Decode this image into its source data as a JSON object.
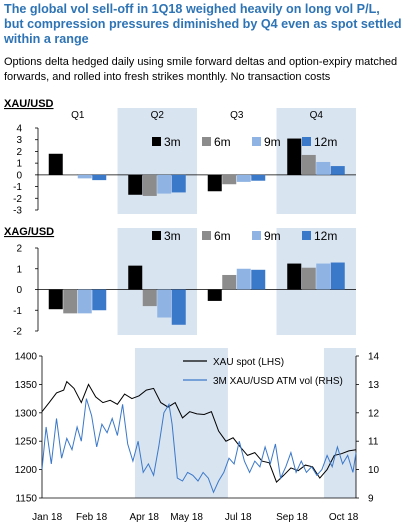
{
  "header": {
    "title": "The global vol sell-off in 1Q18 weighed heavily on long vol P/L, but compression pressures diminished by Q4 even as spot settled within a range",
    "subtitle": "Options delta hedged daily using smile forward deltas and option-expiry matched forwards, and rolled into fresh strikes monthly. No transaction costs"
  },
  "colors": {
    "title": "#2e74b5",
    "series_3m": "#000000",
    "series_6m": "#8c8c8c",
    "series_9m": "#8fb4e3",
    "series_12m": "#3a78c9",
    "quarter_shade": "#d9e4f1",
    "xau_spot_line": "#000000",
    "vol_line": "#3a78c9"
  },
  "chart_data": [
    {
      "type": "bar",
      "title": "XAU/USD",
      "categories": [
        "Q1",
        "Q2",
        "Q3",
        "Q4"
      ],
      "shaded_categories": [
        "Q2",
        "Q4"
      ],
      "series": [
        {
          "name": "3m",
          "values": [
            1.8,
            -1.7,
            -1.4,
            3.1
          ]
        },
        {
          "name": "6m",
          "values": [
            0.05,
            -1.8,
            -0.8,
            1.7
          ]
        },
        {
          "name": "9m",
          "values": [
            -0.3,
            -1.6,
            -0.6,
            1.1
          ]
        },
        {
          "name": "12m",
          "values": [
            -0.45,
            -1.5,
            -0.5,
            0.75
          ]
        }
      ],
      "ylim": [
        -3,
        4
      ],
      "yticks": [
        "4",
        "3",
        "2",
        "1",
        "0",
        "-1",
        "-2",
        "-3"
      ],
      "legend": "top-right"
    },
    {
      "type": "bar",
      "title": "XAG/USD",
      "categories": [
        "Q1",
        "Q2",
        "Q3",
        "Q4"
      ],
      "shaded_categories": [
        "Q2",
        "Q4"
      ],
      "series": [
        {
          "name": "3m",
          "values": [
            -0.95,
            1.15,
            -0.55,
            1.25
          ]
        },
        {
          "name": "6m",
          "values": [
            -1.15,
            -0.8,
            0.7,
            1.05
          ]
        },
        {
          "name": "9m",
          "values": [
            -1.15,
            -1.35,
            1.0,
            1.25
          ]
        },
        {
          "name": "12m",
          "values": [
            -1.0,
            -1.7,
            0.95,
            1.3
          ]
        }
      ],
      "ylim": [
        -2,
        2
      ],
      "yticks": [
        "2",
        "1",
        "0",
        "-1",
        "-2"
      ],
      "legend": "top-right"
    },
    {
      "type": "line",
      "x_range": [
        "2018-01-01",
        "2018-11-01"
      ],
      "xticks": [
        "Jan 18",
        "Feb 18",
        "Apr 18",
        "May 18",
        "Jul 18",
        "Sep 18",
        "Oct 18"
      ],
      "ylim_left": [
        1150,
        1400
      ],
      "yticks_left": [
        "1400",
        "1350",
        "1300",
        "1250",
        "1200",
        "1150"
      ],
      "ylim_right": [
        9,
        14
      ],
      "yticks_right": [
        "14",
        "13",
        "12",
        "11",
        "10",
        "9"
      ],
      "shaded_ranges": [
        [
          "2018-04-01",
          "2018-06-30"
        ],
        [
          "2018-10-01",
          "2018-12-31"
        ]
      ],
      "legend": "top-right",
      "series": [
        {
          "name": "XAU spot (LHS)",
          "axis": "left",
          "points": [
            [
              "2018-01-01",
              1302
            ],
            [
              "2018-01-08",
              1318
            ],
            [
              "2018-01-15",
              1335
            ],
            [
              "2018-01-22",
              1340
            ],
            [
              "2018-01-25",
              1355
            ],
            [
              "2018-02-01",
              1343
            ],
            [
              "2018-02-08",
              1318
            ],
            [
              "2018-02-15",
              1350
            ],
            [
              "2018-02-22",
              1328
            ],
            [
              "2018-03-01",
              1318
            ],
            [
              "2018-03-08",
              1322
            ],
            [
              "2018-03-15",
              1315
            ],
            [
              "2018-03-22",
              1333
            ],
            [
              "2018-03-29",
              1325
            ],
            [
              "2018-04-05",
              1330
            ],
            [
              "2018-04-12",
              1340
            ],
            [
              "2018-04-19",
              1343
            ],
            [
              "2018-04-26",
              1318
            ],
            [
              "2018-05-03",
              1310
            ],
            [
              "2018-05-10",
              1318
            ],
            [
              "2018-05-17",
              1291
            ],
            [
              "2018-05-24",
              1302
            ],
            [
              "2018-05-31",
              1298
            ],
            [
              "2018-06-07",
              1297
            ],
            [
              "2018-06-14",
              1302
            ],
            [
              "2018-06-21",
              1268
            ],
            [
              "2018-06-28",
              1250
            ],
            [
              "2018-07-05",
              1256
            ],
            [
              "2018-07-12",
              1240
            ],
            [
              "2018-07-19",
              1225
            ],
            [
              "2018-07-26",
              1230
            ],
            [
              "2018-08-02",
              1215
            ],
            [
              "2018-08-09",
              1212
            ],
            [
              "2018-08-16",
              1178
            ],
            [
              "2018-08-23",
              1190
            ],
            [
              "2018-08-30",
              1203
            ],
            [
              "2018-09-06",
              1198
            ],
            [
              "2018-09-13",
              1208
            ],
            [
              "2018-09-20",
              1205
            ],
            [
              "2018-09-27",
              1185
            ],
            [
              "2018-10-04",
              1200
            ],
            [
              "2018-10-11",
              1225
            ],
            [
              "2018-10-18",
              1228
            ],
            [
              "2018-10-25",
              1233
            ],
            [
              "2018-11-01",
              1235
            ]
          ]
        },
        {
          "name": "3M XAU/USD ATM vol (RHS)",
          "axis": "right",
          "points": [
            [
              "2018-01-01",
              10.0
            ],
            [
              "2018-01-05",
              11.5
            ],
            [
              "2018-01-10",
              10.2
            ],
            [
              "2018-01-15",
              11.8
            ],
            [
              "2018-01-20",
              10.4
            ],
            [
              "2018-01-25",
              11.1
            ],
            [
              "2018-01-30",
              10.7
            ],
            [
              "2018-02-04",
              11.5
            ],
            [
              "2018-02-08",
              11.0
            ],
            [
              "2018-02-13",
              12.5
            ],
            [
              "2018-02-18",
              11.9
            ],
            [
              "2018-02-23",
              10.8
            ],
            [
              "2018-02-28",
              11.6
            ],
            [
              "2018-03-05",
              11.3
            ],
            [
              "2018-03-10",
              11.8
            ],
            [
              "2018-03-15",
              11.2
            ],
            [
              "2018-03-20",
              12.3
            ],
            [
              "2018-03-25",
              10.9
            ],
            [
              "2018-03-30",
              10.3
            ],
            [
              "2018-04-04",
              11.0
            ],
            [
              "2018-04-09",
              9.9
            ],
            [
              "2018-04-14",
              10.2
            ],
            [
              "2018-04-19",
              9.8
            ],
            [
              "2018-04-24",
              10.8
            ],
            [
              "2018-04-29",
              12.0
            ],
            [
              "2018-05-04",
              12.3
            ],
            [
              "2018-05-07",
              11.6
            ],
            [
              "2018-05-12",
              9.7
            ],
            [
              "2018-05-17",
              9.6
            ],
            [
              "2018-05-22",
              9.9
            ],
            [
              "2018-05-27",
              9.8
            ],
            [
              "2018-06-01",
              9.6
            ],
            [
              "2018-06-06",
              9.9
            ],
            [
              "2018-06-11",
              9.7
            ],
            [
              "2018-06-16",
              9.2
            ],
            [
              "2018-06-21",
              9.6
            ],
            [
              "2018-06-26",
              9.9
            ],
            [
              "2018-07-01",
              10.4
            ],
            [
              "2018-07-06",
              10.2
            ],
            [
              "2018-07-11",
              11.0
            ],
            [
              "2018-07-16",
              10.3
            ],
            [
              "2018-07-21",
              9.9
            ],
            [
              "2018-07-26",
              10.3
            ],
            [
              "2018-07-31",
              10.1
            ],
            [
              "2018-08-05",
              10.8
            ],
            [
              "2018-08-10",
              10.2
            ],
            [
              "2018-08-15",
              10.9
            ],
            [
              "2018-08-20",
              9.7
            ],
            [
              "2018-08-25",
              10.1
            ],
            [
              "2018-08-30",
              10.6
            ],
            [
              "2018-09-04",
              9.9
            ],
            [
              "2018-09-09",
              10.3
            ],
            [
              "2018-09-14",
              9.9
            ],
            [
              "2018-09-19",
              10.1
            ],
            [
              "2018-09-24",
              9.8
            ],
            [
              "2018-09-29",
              10.0
            ],
            [
              "2018-10-04",
              10.5
            ],
            [
              "2018-10-09",
              10.1
            ],
            [
              "2018-10-14",
              10.8
            ],
            [
              "2018-10-19",
              10.2
            ],
            [
              "2018-10-24",
              10.5
            ],
            [
              "2018-10-29",
              9.9
            ],
            [
              "2018-11-01",
              10.6
            ]
          ]
        }
      ]
    }
  ]
}
